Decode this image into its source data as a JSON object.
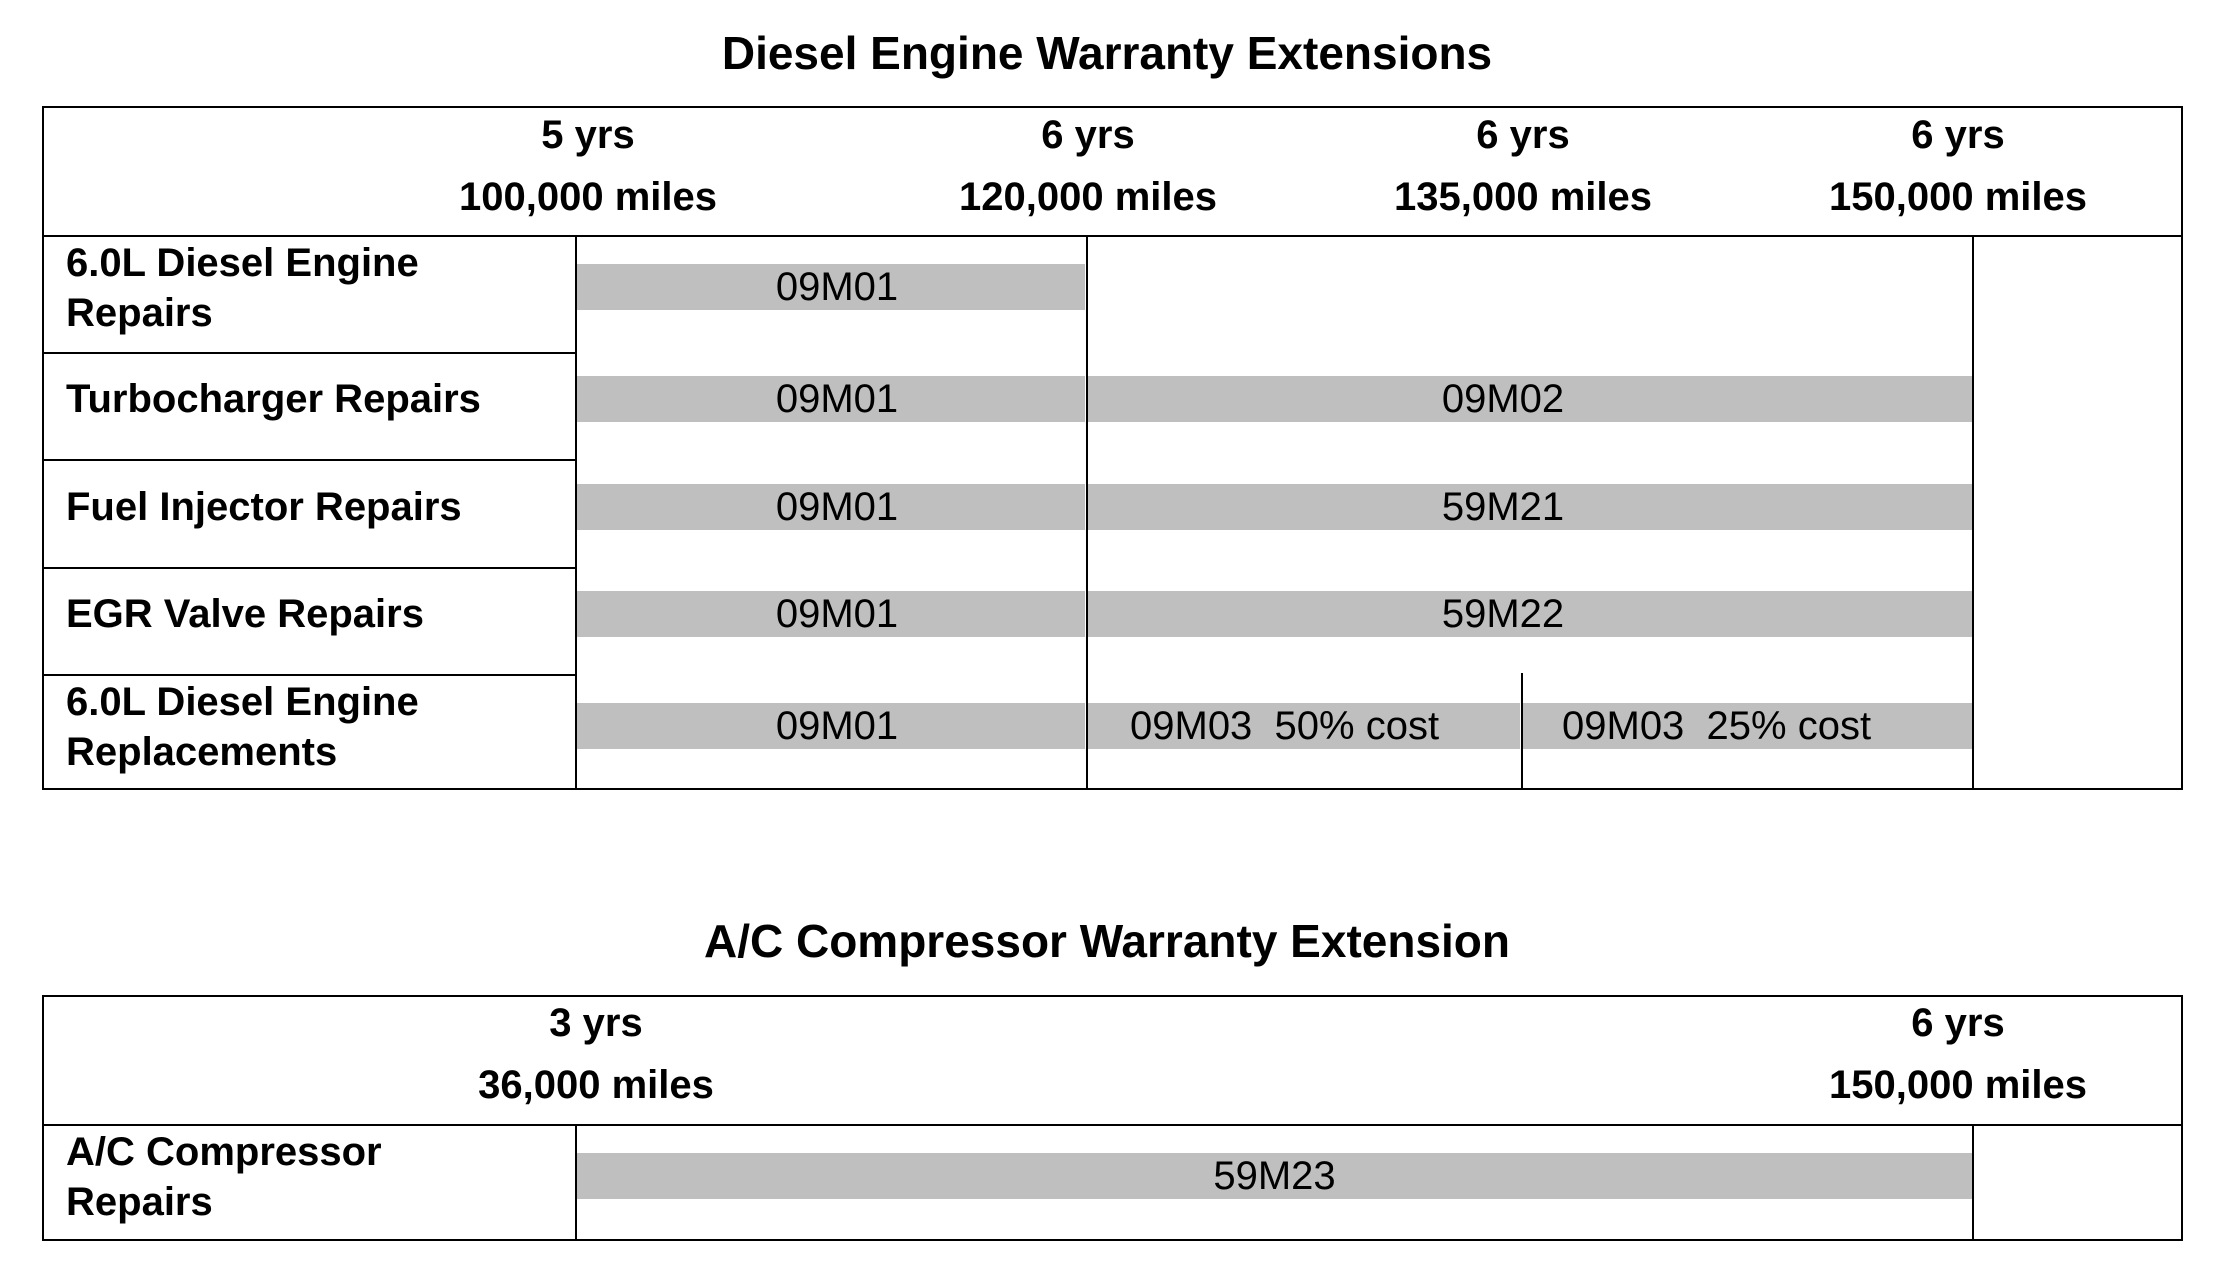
{
  "diesel": {
    "title": "Diesel Engine Warranty Extensions",
    "marks": [
      {
        "yrs": "5 yrs",
        "miles": "100,000 miles"
      },
      {
        "yrs": "6 yrs",
        "miles": "120,000 miles"
      },
      {
        "yrs": "6 yrs",
        "miles": "135,000 miles"
      },
      {
        "yrs": "6 yrs",
        "miles": "150,000 miles"
      }
    ],
    "rows": [
      {
        "label_line1": "6.0L Diesel Engine",
        "label_line2": "Repairs",
        "bars": [
          {
            "code": "09M01"
          }
        ]
      },
      {
        "label_line1": "Turbocharger Repairs",
        "label_line2": "",
        "bars": [
          {
            "code": "09M01"
          },
          {
            "code": "09M02"
          }
        ]
      },
      {
        "label_line1": "Fuel Injector Repairs",
        "label_line2": "",
        "bars": [
          {
            "code": "09M01"
          },
          {
            "code": "59M21"
          }
        ]
      },
      {
        "label_line1": "EGR Valve Repairs",
        "label_line2": "",
        "bars": [
          {
            "code": "09M01"
          },
          {
            "code": "59M22"
          }
        ]
      },
      {
        "label_line1": "6.0L Diesel Engine",
        "label_line2": "Replacements",
        "bars": [
          {
            "code": "09M01"
          },
          {
            "code": "09M03  50% cost"
          },
          {
            "code": "09M03  25% cost"
          }
        ]
      }
    ]
  },
  "ac": {
    "title": "A/C Compressor Warranty Extension",
    "marks": [
      {
        "yrs": "3 yrs",
        "miles": "36,000 miles"
      },
      {
        "yrs": "6 yrs",
        "miles": "150,000 miles"
      }
    ],
    "rows": [
      {
        "label_line1": "A/C Compressor",
        "label_line2": "Repairs",
        "bars": [
          {
            "code": "59M23"
          }
        ]
      }
    ]
  },
  "colors": {
    "bar": "#bfbfbf",
    "lines": "#000000"
  }
}
